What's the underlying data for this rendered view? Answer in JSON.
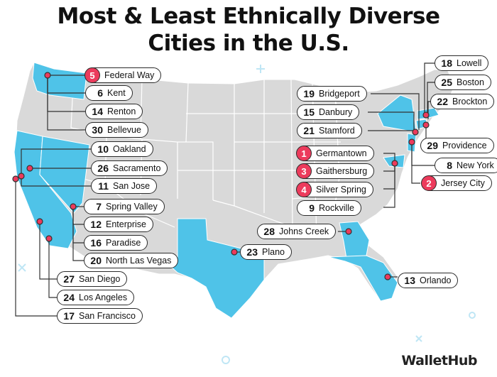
{
  "title_line1": "Most & Least Ethnically Diverse",
  "title_line2": "Cities in the U.S.",
  "brand": "WalletHub",
  "colors": {
    "land": "#d9d9d9",
    "highlight": "#4fc3e8",
    "marker": "#ec3b5c",
    "line": "#333333",
    "ocean": "#ffffff"
  },
  "highlighted_states": [
    "Washington",
    "California",
    "Nevada",
    "Texas",
    "Georgia",
    "Florida",
    "New York",
    "New Jersey",
    "Maryland",
    "Connecticut",
    "Massachusetts",
    "Rhode Island"
  ],
  "cities": [
    {
      "id": "federal-way",
      "rank": "5",
      "name": "Federal Way",
      "highlight": true
    },
    {
      "id": "kent",
      "rank": "6",
      "name": "Kent",
      "highlight": false
    },
    {
      "id": "renton",
      "rank": "14",
      "name": "Renton",
      "highlight": false
    },
    {
      "id": "bellevue",
      "rank": "30",
      "name": "Bellevue",
      "highlight": false
    },
    {
      "id": "oakland",
      "rank": "10",
      "name": "Oakland",
      "highlight": false
    },
    {
      "id": "sacramento",
      "rank": "26",
      "name": "Sacramento",
      "highlight": false
    },
    {
      "id": "san-jose",
      "rank": "11",
      "name": "San Jose",
      "highlight": false
    },
    {
      "id": "spring-valley",
      "rank": "7",
      "name": "Spring Valley",
      "highlight": false
    },
    {
      "id": "enterprise",
      "rank": "12",
      "name": "Enterprise",
      "highlight": false
    },
    {
      "id": "paradise",
      "rank": "16",
      "name": "Paradise",
      "highlight": false
    },
    {
      "id": "north-las-vegas",
      "rank": "20",
      "name": "North Las Vegas",
      "highlight": false
    },
    {
      "id": "san-diego",
      "rank": "27",
      "name": "San Diego",
      "highlight": false
    },
    {
      "id": "los-angeles",
      "rank": "24",
      "name": "Los Angeles",
      "highlight": false
    },
    {
      "id": "san-francisco",
      "rank": "17",
      "name": "San Francisco",
      "highlight": false
    },
    {
      "id": "plano",
      "rank": "23",
      "name": "Plano",
      "highlight": false
    },
    {
      "id": "johns-creek",
      "rank": "28",
      "name": "Johns Creek",
      "highlight": false
    },
    {
      "id": "orlando",
      "rank": "13",
      "name": "Orlando",
      "highlight": false
    },
    {
      "id": "germantown",
      "rank": "1",
      "name": "Germantown",
      "highlight": true
    },
    {
      "id": "gaithersburg",
      "rank": "3",
      "name": "Gaithersburg",
      "highlight": true
    },
    {
      "id": "silver-spring",
      "rank": "4",
      "name": "Silver Spring",
      "highlight": true
    },
    {
      "id": "rockville",
      "rank": "9",
      "name": "Rockville",
      "highlight": false
    },
    {
      "id": "bridgeport",
      "rank": "19",
      "name": "Bridgeport",
      "highlight": false
    },
    {
      "id": "danbury",
      "rank": "15",
      "name": "Danbury",
      "highlight": false
    },
    {
      "id": "stamford",
      "rank": "21",
      "name": "Stamford",
      "highlight": false
    },
    {
      "id": "lowell",
      "rank": "18",
      "name": "Lowell",
      "highlight": false
    },
    {
      "id": "boston",
      "rank": "25",
      "name": "Boston",
      "highlight": false
    },
    {
      "id": "brockton",
      "rank": "22",
      "name": "Brockton",
      "highlight": false
    },
    {
      "id": "providence",
      "rank": "29",
      "name": "Providence",
      "highlight": false
    },
    {
      "id": "new-york",
      "rank": "8",
      "name": "New York",
      "highlight": false
    },
    {
      "id": "jersey-city",
      "rank": "2",
      "name": "Jersey City",
      "highlight": true
    }
  ]
}
